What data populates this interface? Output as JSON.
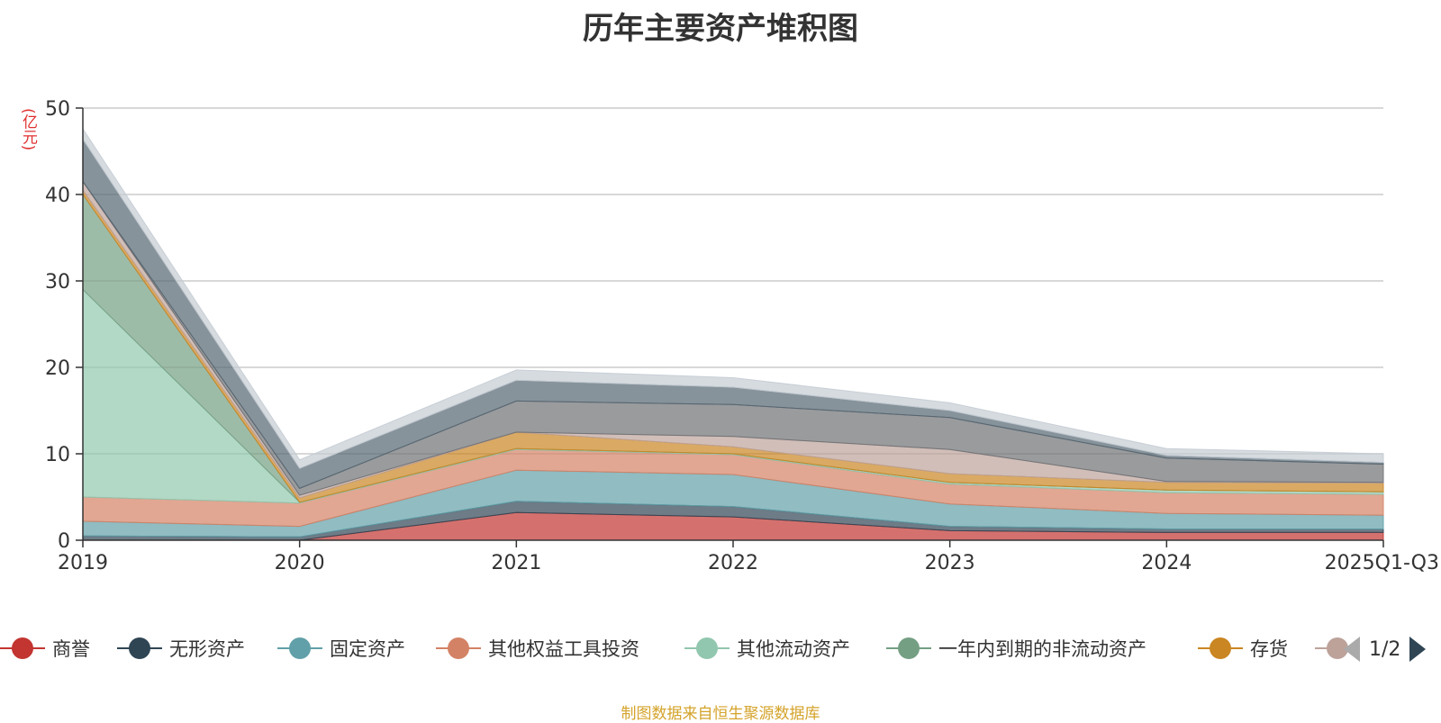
{
  "unit": "(亿元)",
  "footer": {
    "source_text": "制图数据来自恒生聚源数据库"
  },
  "pager": {
    "text": "1/2"
  },
  "legend": [
    {
      "name": "商誉",
      "color": "#c23531"
    },
    {
      "name": "无形资产",
      "color": "#2f4554"
    },
    {
      "name": "固定资产",
      "color": "#61a0a8"
    },
    {
      "name": "其他权益工具投资",
      "color": "#d48265"
    },
    {
      "name": "其他流动资产",
      "color": "#91c7ae"
    },
    {
      "name": "一年内到期的非流动资产",
      "color": "#749f83"
    },
    {
      "name": "存货",
      "color": "#ca8622"
    },
    {
      "name": "",
      "color": "#bda29a"
    }
  ],
  "chart_data": {
    "type": "area",
    "stacked": true,
    "title": "历年主要资产堆积图",
    "xlabel": "",
    "ylabel": "(亿元)",
    "categories": [
      "2019",
      "2020",
      "2021",
      "2022",
      "2023",
      "2024",
      "2025Q1-Q3"
    ],
    "ylim": [
      0,
      50
    ],
    "yticks": [
      0,
      10,
      20,
      30,
      40,
      50
    ],
    "grid": true,
    "legend_position": "bottom",
    "series": [
      {
        "name": "商誉",
        "color": "#c23531",
        "values": [
          0,
          0,
          3.2,
          2.7,
          1.1,
          0.9,
          0.9
        ]
      },
      {
        "name": "无形资产",
        "color": "#2f4554",
        "values": [
          0.5,
          0.4,
          1.3,
          1.2,
          0.5,
          0.4,
          0.4
        ]
      },
      {
        "name": "固定资产",
        "color": "#61a0a8",
        "values": [
          1.7,
          1.2,
          3.6,
          3.7,
          2.6,
          1.8,
          1.6
        ]
      },
      {
        "name": "其他权益工具投资",
        "color": "#d48265",
        "values": [
          2.8,
          2.7,
          2.4,
          2.3,
          2.3,
          2.4,
          2.4
        ]
      },
      {
        "name": "其他流动资产",
        "color": "#91c7ae",
        "values": [
          24.0,
          0.1,
          0.1,
          0.1,
          0.2,
          0.3,
          0.3
        ]
      },
      {
        "name": "一年内到期的非流动资产",
        "color": "#749f83",
        "values": [
          11.0,
          0,
          0,
          0,
          0,
          0,
          0
        ]
      },
      {
        "name": "存货",
        "color": "#ca8622",
        "values": [
          0.5,
          0.5,
          1.9,
          0.8,
          1.0,
          0.9,
          1.0
        ]
      },
      {
        "color": "#bda29a",
        "values": [
          1.0,
          0.3,
          0,
          1.2,
          2.8,
          0.1,
          0.1
        ]
      },
      {
        "color": "#6e7074",
        "values": [
          0,
          0.8,
          3.6,
          3.7,
          3.7,
          2.7,
          2.1
        ]
      },
      {
        "color": "#546570",
        "values": [
          4.9,
          2.3,
          2.4,
          2.0,
          0.8,
          0.3,
          0.2
        ]
      },
      {
        "color": "#c4ccd3",
        "values": [
          1.2,
          1.0,
          1.2,
          1.1,
          0.9,
          0.8,
          1.0
        ]
      }
    ]
  }
}
